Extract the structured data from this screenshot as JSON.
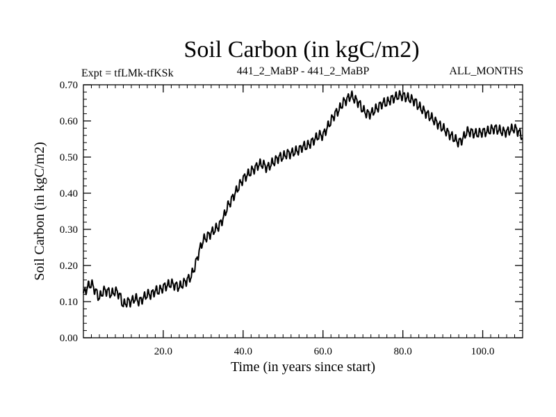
{
  "chart_data": {
    "type": "line",
    "title": "Soil Carbon (in kgC/m2)",
    "subtitle_left": "Expt = tfLMk-tfKSk",
    "subtitle_center": "441_2_MaBP - 441_2_MaBP",
    "subtitle_right": "ALL_MONTHS",
    "xlabel": "Time (in years since start)",
    "ylabel": "Soil Carbon (in kgC/m2)",
    "xlim": [
      0,
      110
    ],
    "ylim": [
      0,
      0.7
    ],
    "x_ticks": [
      20,
      40,
      60,
      80,
      100
    ],
    "x_tick_labels": [
      "20.0",
      "40.0",
      "60.0",
      "80.0",
      "100.0"
    ],
    "y_ticks": [
      0,
      0.1,
      0.2,
      0.3,
      0.4,
      0.5,
      0.6,
      0.7
    ],
    "y_tick_labels": [
      "0.00",
      "0.10",
      "0.20",
      "0.30",
      "0.40",
      "0.50",
      "0.60",
      "0.70"
    ],
    "grid": false,
    "line_color": "#000000",
    "series": [
      {
        "name": "Soil Carbon",
        "x": [
          0,
          1,
          2,
          3,
          4,
          5,
          6,
          7,
          8,
          9,
          10,
          11,
          12,
          13,
          14,
          15,
          16,
          17,
          18,
          19,
          20,
          21,
          22,
          23,
          24,
          25,
          26,
          27,
          28,
          29,
          30,
          31,
          32,
          33,
          34,
          35,
          36,
          37,
          38,
          39,
          40,
          41,
          42,
          43,
          44,
          45,
          46,
          47,
          48,
          49,
          50,
          51,
          52,
          53,
          54,
          55,
          56,
          57,
          58,
          59,
          60,
          61,
          62,
          63,
          64,
          65,
          66,
          67,
          68,
          69,
          70,
          71,
          72,
          73,
          74,
          75,
          76,
          77,
          78,
          79,
          80,
          81,
          82,
          83,
          84,
          85,
          86,
          87,
          88,
          89,
          90,
          91,
          92,
          93,
          94,
          95,
          96,
          97,
          98,
          99,
          100,
          101,
          102,
          103,
          104,
          105,
          106,
          107,
          108,
          109,
          110
        ],
        "values": [
          0.12,
          0.14,
          0.15,
          0.13,
          0.11,
          0.13,
          0.13,
          0.12,
          0.13,
          0.12,
          0.09,
          0.1,
          0.1,
          0.11,
          0.1,
          0.11,
          0.12,
          0.12,
          0.13,
          0.13,
          0.14,
          0.145,
          0.15,
          0.145,
          0.14,
          0.15,
          0.16,
          0.17,
          0.2,
          0.24,
          0.27,
          0.28,
          0.29,
          0.3,
          0.31,
          0.33,
          0.36,
          0.38,
          0.4,
          0.42,
          0.44,
          0.45,
          0.46,
          0.47,
          0.48,
          0.48,
          0.47,
          0.48,
          0.49,
          0.5,
          0.5,
          0.51,
          0.51,
          0.515,
          0.52,
          0.53,
          0.53,
          0.54,
          0.55,
          0.56,
          0.56,
          0.58,
          0.6,
          0.62,
          0.63,
          0.65,
          0.66,
          0.67,
          0.66,
          0.65,
          0.63,
          0.62,
          0.62,
          0.63,
          0.64,
          0.65,
          0.65,
          0.66,
          0.665,
          0.67,
          0.67,
          0.665,
          0.66,
          0.655,
          0.64,
          0.63,
          0.62,
          0.61,
          0.6,
          0.59,
          0.58,
          0.57,
          0.56,
          0.55,
          0.54,
          0.55,
          0.57,
          0.57,
          0.565,
          0.565,
          0.57,
          0.57,
          0.575,
          0.58,
          0.575,
          0.57,
          0.57,
          0.575,
          0.58,
          0.57,
          0.555
        ]
      }
    ]
  }
}
